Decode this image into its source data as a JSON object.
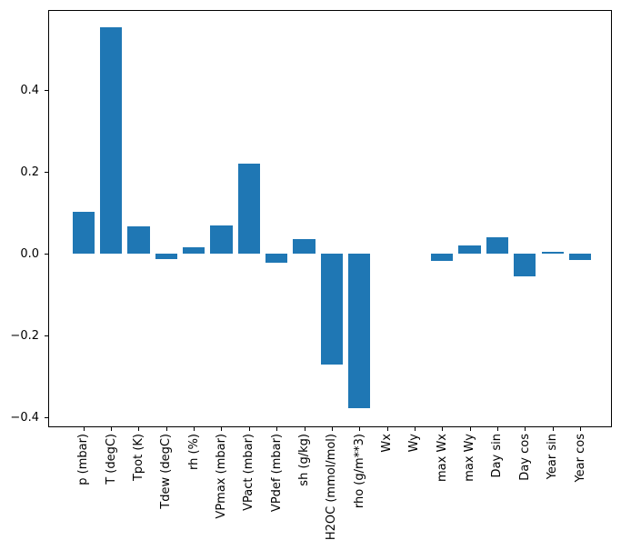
{
  "figure": {
    "background": "#ffffff",
    "axes_border_color": "#000000"
  },
  "chart_data": {
    "type": "bar",
    "title": "",
    "xlabel": "",
    "ylabel": "",
    "grid": false,
    "legend": "none",
    "bar_color": "#1f77b4",
    "categories": [
      "p (mbar)",
      "T (degC)",
      "Tpot (K)",
      "Tdew (degC)",
      "rh (%)",
      "VPmax (mbar)",
      "VPact (mbar)",
      "VPdef (mbar)",
      "sh (g/kg)",
      "H2OC (mmol/mol)",
      "rho (g/m**3)",
      "Wx",
      "Wy",
      "max Wx",
      "max Wy",
      "Day sin",
      "Day cos",
      "Year sin",
      "Year cos"
    ],
    "values": [
      0.103,
      0.554,
      0.067,
      -0.013,
      0.015,
      0.07,
      0.22,
      -0.021,
      0.037,
      -0.27,
      -0.377,
      0.0,
      0.0,
      -0.018,
      0.02,
      0.04,
      -0.055,
      0.004,
      -0.016
    ],
    "ylim": [
      -0.424,
      0.596
    ],
    "yticks": [
      {
        "v": 0.4,
        "label": "0.4"
      },
      {
        "v": 0.2,
        "label": "0.2"
      },
      {
        "v": 0.0,
        "label": "0.0"
      },
      {
        "v": -0.2,
        "label": "−0.2"
      },
      {
        "v": -0.4,
        "label": "−0.4"
      }
    ],
    "xtick_rotation_deg": 90
  }
}
